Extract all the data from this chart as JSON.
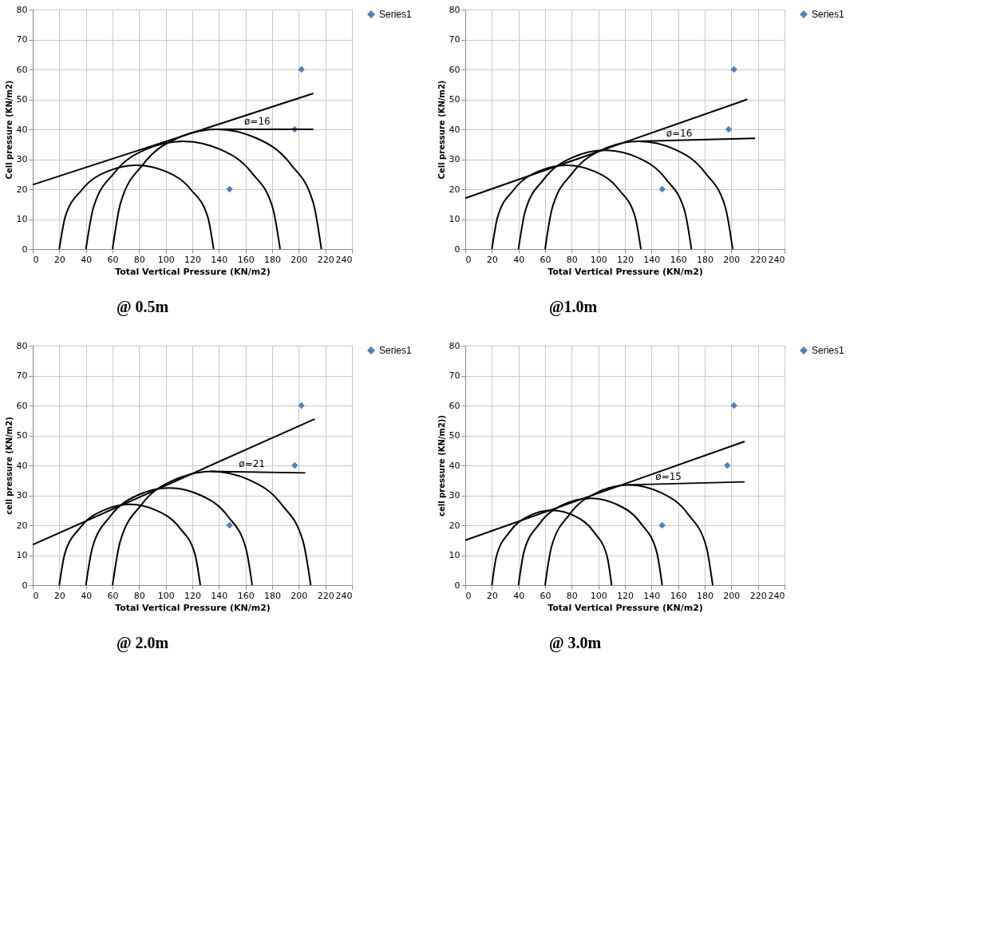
{
  "chart_data": [
    {
      "type": "scatter",
      "title": "@ 0.5m",
      "xlabel": "Total Vertical Pressure (KN/m2)",
      "ylabel": "Cell pressure (KN/m2)",
      "xlim": [
        0,
        240
      ],
      "ylim": [
        0,
        80
      ],
      "xticks": [
        0,
        20,
        40,
        60,
        80,
        100,
        120,
        140,
        160,
        180,
        200,
        220,
        240
      ],
      "yticks": [
        0,
        10,
        20,
        30,
        40,
        50,
        60,
        70,
        80
      ],
      "grid": true,
      "legend": "right",
      "series": [
        {
          "name": "Series1",
          "color": "#4f81bd",
          "marker": "diamond",
          "x": [
            202,
            197,
            148
          ],
          "values": [
            60,
            40,
            20
          ]
        },
        {
          "type": "line",
          "color": "#000000",
          "x": [
            20,
            24.4,
            37,
            55.8,
            78,
            100.2,
            119,
            131.6,
            136
          ],
          "values": [
            0,
            10.7,
            19.8,
            25.9,
            28,
            25.9,
            19.8,
            10.7,
            0
          ]
        },
        {
          "type": "line",
          "color": "#000000",
          "x": [
            40,
            45.6,
            61.4,
            85.1,
            113,
            140.9,
            164.6,
            180.4,
            186
          ],
          "values": [
            0,
            13.8,
            25.5,
            33.3,
            36,
            33.3,
            25.5,
            13.8,
            0
          ]
        },
        {
          "type": "line",
          "color": "#000000",
          "x": [
            60,
            66,
            83,
            108.5,
            138.5,
            168.5,
            194,
            211,
            217
          ],
          "values": [
            0,
            15.3,
            28.3,
            37,
            40,
            37,
            28.3,
            15.3,
            0
          ]
        },
        {
          "type": "line",
          "color": "#000000",
          "x": [
            0,
            211
          ],
          "values": [
            21.5,
            52
          ]
        },
        {
          "type": "line",
          "color": "#000000",
          "x": [
            138,
            211
          ],
          "values": [
            40,
            40
          ]
        }
      ],
      "annotations": [
        "ø=16"
      ]
    },
    {
      "type": "scatter",
      "title": "@1.0m",
      "xlabel": "Total Vertical Pressure (KN/m2)",
      "ylabel": "Cell pressure (KN/m2)",
      "xlim": [
        0,
        240
      ],
      "ylim": [
        0,
        80
      ],
      "xticks": [
        0,
        20,
        40,
        60,
        80,
        100,
        120,
        140,
        160,
        180,
        200,
        220,
        240
      ],
      "yticks": [
        0,
        10,
        20,
        30,
        40,
        50,
        60,
        70,
        80
      ],
      "grid": true,
      "legend": "right",
      "series": [
        {
          "name": "Series1",
          "color": "#4f81bd",
          "marker": "diamond",
          "x": [
            202,
            198,
            148
          ],
          "values": [
            60,
            40,
            20
          ]
        },
        {
          "type": "line",
          "color": "#000000",
          "x": [
            20,
            24.3,
            36.4,
            54.6,
            76,
            97.4,
            115.6,
            127.7,
            132
          ],
          "values": [
            0,
            10.7,
            19.8,
            25.9,
            28,
            25.9,
            19.8,
            10.7,
            0
          ]
        },
        {
          "type": "line",
          "color": "#000000",
          "x": [
            40,
            45,
            59,
            80.1,
            105,
            129.9,
            151,
            165,
            170
          ],
          "values": [
            0,
            12.6,
            23.3,
            30.5,
            33,
            30.5,
            23.3,
            12.6,
            0
          ]
        },
        {
          "type": "line",
          "color": "#000000",
          "x": [
            60,
            65.4,
            80.7,
            103.5,
            130.5,
            157.5,
            180.3,
            195.6,
            201
          ],
          "values": [
            0,
            13.8,
            25.5,
            33.3,
            36,
            33.3,
            25.5,
            13.8,
            0
          ]
        },
        {
          "type": "line",
          "color": "#000000",
          "x": [
            0,
            212
          ],
          "values": [
            17,
            50
          ]
        },
        {
          "type": "line",
          "color": "#000000",
          "x": [
            130,
            218
          ],
          "values": [
            36,
            37
          ]
        }
      ],
      "annotations": [
        "ø=16"
      ]
    },
    {
      "type": "scatter",
      "title": "@ 2.0m",
      "xlabel": "Total Vertical Pressure (KN/m2)",
      "ylabel": "cell pressure (KN/m2)",
      "xlim": [
        0,
        240
      ],
      "ylim": [
        0,
        80
      ],
      "xticks": [
        0,
        20,
        40,
        60,
        80,
        100,
        120,
        140,
        160,
        180,
        200,
        220,
        240
      ],
      "yticks": [
        0,
        10,
        20,
        30,
        40,
        50,
        60,
        70,
        80
      ],
      "grid": true,
      "legend": "right",
      "series": [
        {
          "name": "Series1",
          "color": "#4f81bd",
          "marker": "diamond",
          "x": [
            202,
            197,
            148
          ],
          "values": [
            60,
            40,
            20
          ]
        },
        {
          "type": "line",
          "color": "#000000",
          "x": [
            20,
            24,
            35.5,
            52.7,
            73,
            93.3,
            110.5,
            122,
            126
          ],
          "values": [
            0,
            10.3,
            19.1,
            24.9,
            27,
            24.9,
            19.1,
            10.3,
            0
          ]
        },
        {
          "type": "line",
          "color": "#000000",
          "x": [
            40,
            44.8,
            58.3,
            78.6,
            102.5,
            126.4,
            146.7,
            160.2,
            165
          ],
          "values": [
            0,
            12.4,
            23,
            30,
            32.5,
            30,
            23,
            12.4,
            0
          ]
        },
        {
          "type": "line",
          "color": "#000000",
          "x": [
            60,
            65.7,
            81.8,
            106,
            134.5,
            163,
            187.2,
            203.3,
            209
          ],
          "values": [
            0,
            14.5,
            26.9,
            35.1,
            38,
            35.1,
            26.9,
            14.5,
            0
          ]
        },
        {
          "type": "line",
          "color": "#000000",
          "x": [
            0,
            212
          ],
          "values": [
            13.5,
            55.5
          ]
        },
        {
          "type": "line",
          "color": "#000000",
          "x": [
            134,
            205
          ],
          "values": [
            38,
            37.5
          ]
        }
      ],
      "annotations": [
        "ø=21"
      ]
    },
    {
      "type": "scatter",
      "title": "@ 3.0m",
      "xlabel": "Total Vertical Pressure (KN/m2)",
      "ylabel": "cell pressure (KN/m2))",
      "xlim": [
        0,
        240
      ],
      "ylim": [
        0,
        80
      ],
      "xticks": [
        0,
        20,
        40,
        60,
        80,
        100,
        120,
        140,
        160,
        180,
        200,
        220,
        240
      ],
      "yticks": [
        0,
        10,
        20,
        30,
        40,
        50,
        60,
        70,
        80
      ],
      "grid": true,
      "legend": "right",
      "series": [
        {
          "name": "Series1",
          "color": "#4f81bd",
          "marker": "diamond",
          "x": [
            202,
            197,
            148
          ],
          "values": [
            60,
            40,
            20
          ]
        },
        {
          "type": "line",
          "color": "#000000",
          "x": [
            20,
            23.4,
            33.2,
            47.8,
            65,
            82.2,
            96.8,
            106.6,
            110
          ],
          "values": [
            0,
            9.6,
            17.7,
            23.1,
            25,
            23.1,
            17.7,
            9.6,
            0
          ]
        },
        {
          "type": "line",
          "color": "#000000",
          "x": [
            40,
            44.1,
            55.8,
            73.3,
            94,
            114.7,
            132.2,
            143.9,
            148
          ],
          "values": [
            0,
            11.1,
            20.5,
            26.8,
            29,
            26.8,
            20.5,
            11.1,
            0
          ]
        },
        {
          "type": "line",
          "color": "#000000",
          "x": [
            60,
            64.8,
            78.5,
            98.9,
            123,
            147.1,
            167.5,
            181.2,
            186
          ],
          "values": [
            0,
            12.8,
            23.7,
            30.9,
            33.5,
            30.9,
            23.7,
            12.8,
            0
          ]
        },
        {
          "type": "line",
          "color": "#000000",
          "x": [
            0,
            210
          ],
          "values": [
            15,
            48
          ]
        },
        {
          "type": "line",
          "color": "#000000",
          "x": [
            122,
            210
          ],
          "values": [
            33.5,
            34.5
          ]
        }
      ],
      "annotations": [
        "ø=15"
      ]
    }
  ]
}
